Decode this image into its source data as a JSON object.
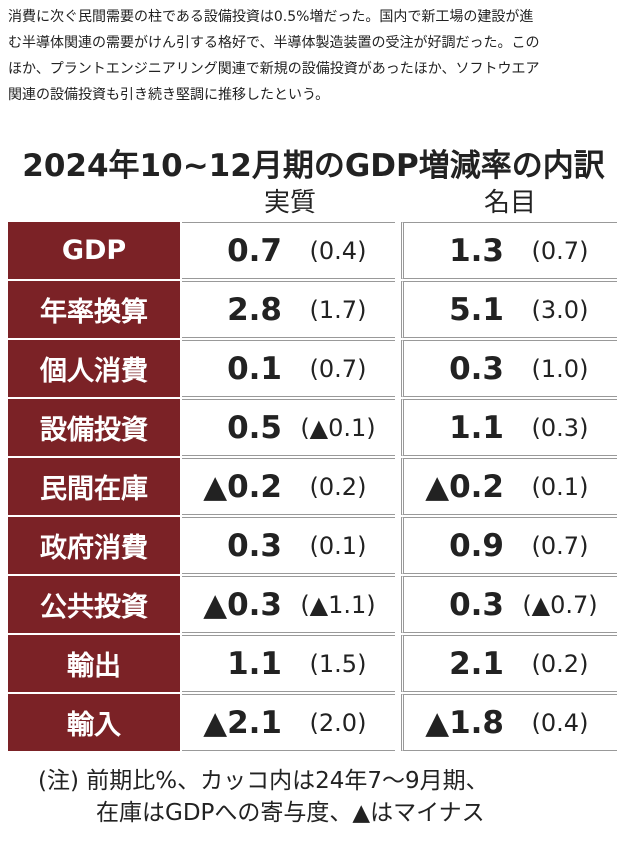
{
  "article": {
    "lines": [
      "消費に次ぐ民間需要の柱である設備投資は0.5%増だった。国内で新工場の建設が進",
      "む半導体関連の需要がけん引する格好で、半導体製造装置の受注が好調だった。この",
      "ほか、プラントエンジニアリング関連で新規の設備投資があったほか、ソフトウエア",
      "関連の設備投資も引き続き堅調に推移したという。"
    ]
  },
  "table": {
    "title": "2024年10~12月期のGDP増減率の内訳",
    "columns": [
      "実質",
      "名目"
    ],
    "rows": [
      [
        "GDP",
        "0.7",
        "(0.4)",
        "1.3",
        "(0.7)"
      ],
      [
        "年率換算",
        "2.8",
        "(1.7)",
        "5.1",
        "(3.0)"
      ],
      [
        "個人消費",
        "0.1",
        "(0.7)",
        "0.3",
        "(1.0)"
      ],
      [
        "設備投資",
        "0.5",
        "(▲0.1)",
        "1.1",
        "(0.3)"
      ],
      [
        "民間在庫",
        "▲0.2",
        "(0.2)",
        "▲0.2",
        "(0.1)"
      ],
      [
        "政府消費",
        "0.3",
        "(0.1)",
        "0.9",
        "(0.7)"
      ],
      [
        "公共投資",
        "▲0.3",
        "(▲1.1)",
        "0.3",
        "(▲0.7)"
      ],
      [
        "輸出",
        "1.1",
        "(1.5)",
        "2.1",
        "(0.2)"
      ],
      [
        "輸入",
        "▲2.1",
        "(2.0)",
        "▲1.8",
        "(0.4)"
      ]
    ],
    "note": [
      "(注) 前期比%、カッコ内は24年7～9月期、",
      "在庫はGDPへの寄与度、▲はマイナス"
    ]
  }
}
